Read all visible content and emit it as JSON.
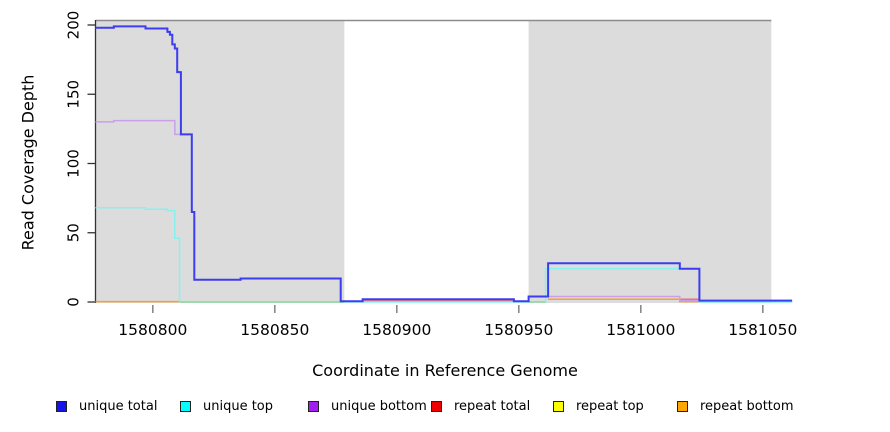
{
  "chart_data": {
    "type": "line",
    "title": "",
    "xlabel": "Coordinate in Reference Genome",
    "ylabel": "Read Coverage Depth",
    "x_axis": {
      "ticks": [
        1580800,
        1580850,
        1580900,
        1580950,
        1581000,
        1581050
      ],
      "range": [
        1580776.5,
        1581062
      ]
    },
    "y_axis": {
      "ticks": [
        0,
        50,
        100,
        150,
        200
      ],
      "range": [
        0,
        200
      ]
    },
    "grid": false,
    "legend_position": "bottom",
    "shaded_regions": [
      {
        "name": "left-gray-region",
        "start": 1580776.5,
        "end": 1580878.5,
        "fill": "#DCDCDC"
      },
      {
        "name": "right-gray-region",
        "start": 1580954.0,
        "end": 1581053.5,
        "fill": "#DCDCDC"
      }
    ],
    "region_top_value": 203,
    "series": [
      {
        "name": "repeat total",
        "line_color": "#E87070",
        "legend_color": "#EE0000",
        "segments": [
          [
            [
              1580886,
              0.8
            ],
            [
              1580948,
              0.8
            ]
          ],
          [
            [
              1580962,
              2
            ],
            [
              1581024,
              2
            ],
            [
              1581024,
              0.2
            ],
            [
              1581062,
              0.2
            ]
          ]
        ]
      },
      {
        "name": "repeat bottom",
        "line_color": "#FF9D2E",
        "legend_color": "#FFA500",
        "segments": [
          [
            [
              1580776.5,
              0.3
            ],
            [
              1580811,
              0.3
            ]
          ],
          [
            [
              1580962,
              2
            ],
            [
              1581016,
              2
            ],
            [
              1581016,
              0.3
            ],
            [
              1581024,
              0.3
            ]
          ]
        ]
      },
      {
        "name": "unique top",
        "line_color": "#85F1F1",
        "legend_color": "#00FFFF",
        "segments": [
          [
            [
              1580776.5,
              68
            ],
            [
              1580797,
              68
            ],
            [
              1580797,
              67
            ],
            [
              1580806,
              67
            ],
            [
              1580806,
              66
            ],
            [
              1580809,
              66
            ],
            [
              1580809,
              46
            ],
            [
              1580811,
              46
            ],
            [
              1580811,
              0
            ],
            [
              1580961,
              0
            ],
            [
              1580961,
              24
            ],
            [
              1581024,
              24
            ],
            [
              1581024,
              0
            ],
            [
              1581062,
              0
            ]
          ]
        ]
      },
      {
        "name": "repeat top",
        "line_color": "#95D995",
        "legend_color": "#FFFF00",
        "segments": [
          [
            [
              1580811,
              0
            ],
            [
              1580878.5,
              0
            ]
          ],
          [
            [
              1580954,
              0
            ],
            [
              1580961,
              0
            ]
          ]
        ]
      },
      {
        "name": "unique bottom",
        "line_color": "#C9A0E9",
        "legend_color": "#A020F0",
        "segments": [
          [
            [
              1580776.5,
              130
            ],
            [
              1580784,
              130
            ],
            [
              1580784,
              131
            ],
            [
              1580809,
              131
            ],
            [
              1580809,
              121
            ],
            [
              1580812,
              121
            ]
          ],
          [
            [
              1580962,
              4
            ],
            [
              1581016,
              4
            ],
            [
              1581016,
              1
            ],
            [
              1581062,
              1
            ]
          ]
        ]
      },
      {
        "name": "unique total",
        "line_color": "#3C3CF0",
        "legend_color": "#1414EB",
        "segments": [
          [
            [
              1580776.5,
              198
            ],
            [
              1580784,
              198
            ],
            [
              1580784,
              199
            ],
            [
              1580797,
              199
            ],
            [
              1580797,
              197.5
            ],
            [
              1580806,
              197.5
            ],
            [
              1580806,
              195
            ],
            [
              1580807,
              195
            ],
            [
              1580807,
              193
            ],
            [
              1580808,
              193
            ],
            [
              1580808,
              186
            ],
            [
              1580809,
              186
            ],
            [
              1580809,
              183
            ],
            [
              1580810,
              183
            ],
            [
              1580810,
              166
            ],
            [
              1580811.5,
              166
            ],
            [
              1580811.5,
              121
            ],
            [
              1580816,
              121
            ],
            [
              1580816,
              65
            ],
            [
              1580817,
              65
            ],
            [
              1580817,
              16
            ],
            [
              1580836,
              16
            ],
            [
              1580836,
              17
            ],
            [
              1580877,
              17
            ],
            [
              1580877,
              0.5
            ],
            [
              1580886,
              0.5
            ],
            [
              1580886,
              2
            ],
            [
              1580948,
              2
            ],
            [
              1580948,
              0.5
            ],
            [
              1580954,
              0.5
            ],
            [
              1580954,
              4
            ],
            [
              1580962,
              4
            ],
            [
              1580962,
              28
            ],
            [
              1581016,
              28
            ],
            [
              1581016,
              24
            ],
            [
              1581024,
              24
            ],
            [
              1581024,
              1
            ],
            [
              1581062,
              1
            ]
          ]
        ]
      }
    ],
    "legend": [
      {
        "label": "unique total",
        "color": "#1414EB"
      },
      {
        "label": "unique top",
        "color": "#00FFFF"
      },
      {
        "label": "unique bottom",
        "color": "#A020F0"
      },
      {
        "label": "repeat total",
        "color": "#EE0000"
      },
      {
        "label": "repeat top",
        "color": "#FFFF00"
      },
      {
        "label": "repeat bottom",
        "color": "#FFA500"
      }
    ]
  }
}
